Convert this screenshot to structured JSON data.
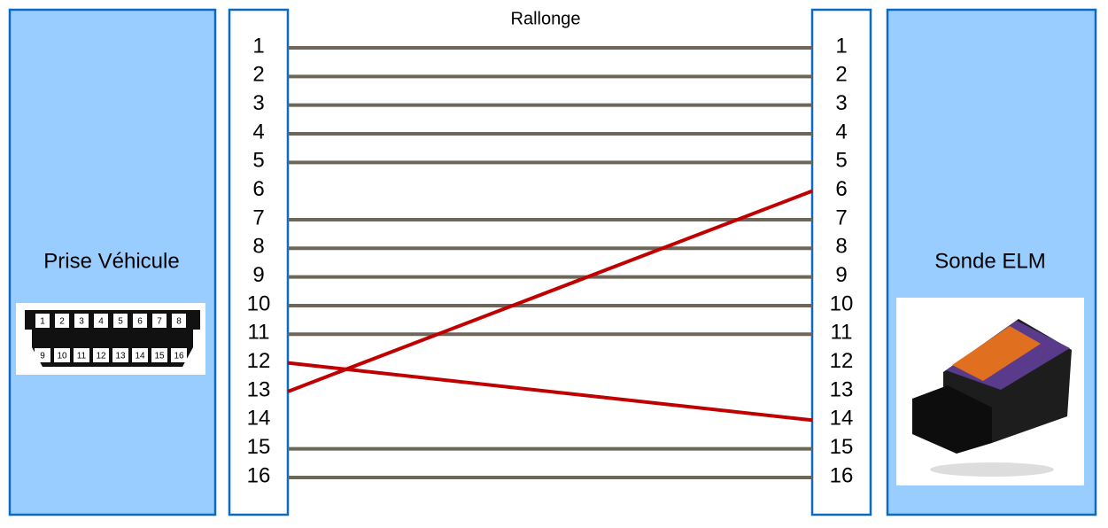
{
  "title": "Rallonge",
  "left_box": {
    "label": "Prise Véhicule"
  },
  "right_box": {
    "label": "Sonde ELM"
  },
  "left_pins": [
    "1",
    "2",
    "3",
    "4",
    "5",
    "6",
    "7",
    "8",
    "9",
    "10",
    "11",
    "12",
    "13",
    "14",
    "15",
    "16"
  ],
  "right_pins": [
    "1",
    "2",
    "3",
    "4",
    "5",
    "6",
    "7",
    "8",
    "9",
    "10",
    "11",
    "12",
    "13",
    "14",
    "15",
    "16"
  ],
  "connector": {
    "top_pins": [
      "1",
      "2",
      "3",
      "4",
      "5",
      "6",
      "7",
      "8"
    ],
    "bottom_pins": [
      "9",
      "10",
      "11",
      "12",
      "13",
      "14",
      "15",
      "16"
    ]
  },
  "connections": [
    {
      "from": "left_pins.0",
      "to": "right_pins.0",
      "color": "#6e6658"
    },
    {
      "from": "left_pins.1",
      "to": "right_pins.1",
      "color": "#6e6658"
    },
    {
      "from": "left_pins.2",
      "to": "right_pins.2",
      "color": "#6e6658"
    },
    {
      "from": "left_pins.3",
      "to": "right_pins.3",
      "color": "#6e6658"
    },
    {
      "from": "left_pins.4",
      "to": "right_pins.4",
      "color": "#6e6658"
    },
    {
      "from": "left_pins.6",
      "to": "right_pins.6",
      "color": "#6e6658"
    },
    {
      "from": "left_pins.7",
      "to": "right_pins.7",
      "color": "#6e6658"
    },
    {
      "from": "left_pins.8",
      "to": "right_pins.8",
      "color": "#6e6658"
    },
    {
      "from": "left_pins.9",
      "to": "right_pins.9",
      "color": "#6e6658"
    },
    {
      "from": "left_pins.10",
      "to": "right_pins.10",
      "color": "#6e6658"
    },
    {
      "from": "left_pins.14",
      "to": "right_pins.14",
      "color": "#6e6658"
    },
    {
      "from": "left_pins.15",
      "to": "right_pins.15",
      "color": "#6e6658"
    },
    {
      "from": "left_pins.12",
      "to": "right_pins.5",
      "color": "#c00000"
    },
    {
      "from": "left_pins.11",
      "to": "right_pins.13",
      "color": "#c00000"
    }
  ]
}
